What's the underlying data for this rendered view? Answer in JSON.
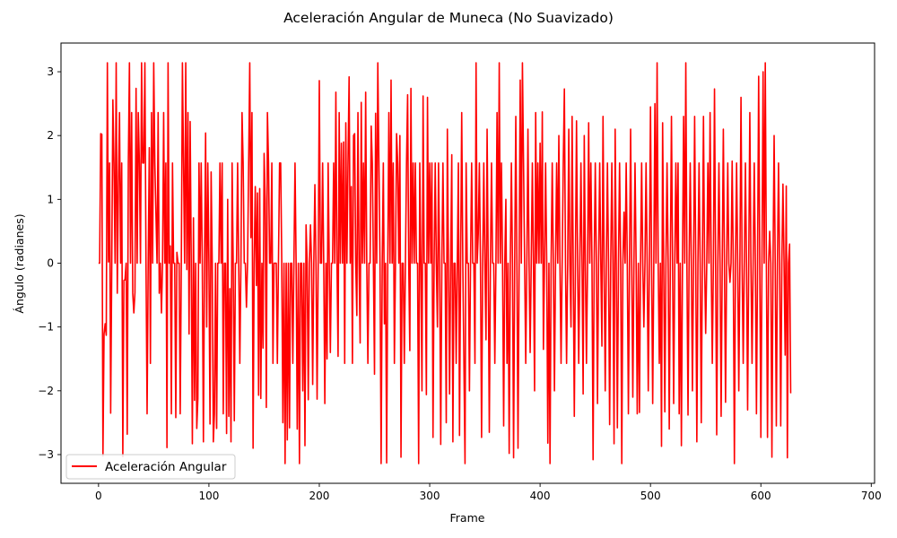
{
  "chart_data": {
    "type": "line",
    "title": "Aceleración Angular de Muneca (No Suavizado)",
    "xlabel": "Frame",
    "ylabel": "Ángulo (radianes)",
    "xlim": [
      -34,
      703
    ],
    "ylim": [
      -3.45,
      3.45
    ],
    "xticks": [
      0,
      100,
      200,
      300,
      400,
      500,
      600,
      700
    ],
    "yticks": [
      -3,
      -2,
      -1,
      0,
      1,
      2,
      3
    ],
    "grid": false,
    "legend_position": "lower-left",
    "series": [
      {
        "name": "Aceleración Angular",
        "color": "#ff0000",
        "x_start": 0,
        "x_step": 1,
        "values": [
          0.0,
          0.0,
          2.03,
          2.02,
          -3.02,
          -1.11,
          -0.95,
          -1.13,
          3.14,
          0.02,
          1.57,
          -2.35,
          0.0,
          2.56,
          1.57,
          0.0,
          3.14,
          -0.47,
          1.21,
          2.36,
          0.0,
          1.57,
          -3.03,
          -0.27,
          -0.26,
          0.0,
          -2.68,
          1.56,
          3.14,
          0.0,
          2.36,
          -0.47,
          -0.78,
          -0.46,
          2.74,
          0.0,
          2.36,
          1.57,
          0.0,
          3.14,
          1.57,
          1.57,
          3.14,
          0.0,
          -2.36,
          0.0,
          1.81,
          -1.57,
          2.36,
          0.0,
          3.14,
          1.57,
          0.78,
          0.0,
          2.36,
          -0.47,
          0.0,
          -0.78,
          0.0,
          2.36,
          0.0,
          1.57,
          -2.89,
          3.14,
          0.0,
          0.27,
          -2.36,
          1.57,
          0.0,
          0.0,
          -2.42,
          0.17,
          0.0,
          0.0,
          -2.36,
          0.0,
          3.14,
          1.57,
          0.0,
          3.14,
          -0.1,
          2.36,
          -1.11,
          2.22,
          0.0,
          -2.83,
          0.71,
          -2.15,
          0.0,
          -2.59,
          -2.12,
          1.57,
          0.0,
          1.57,
          0.0,
          -2.8,
          0.0,
          2.04,
          -1.0,
          1.57,
          0.0,
          -2.52,
          1.43,
          0.0,
          -2.8,
          -2.36,
          0.0,
          -2.59,
          0.0,
          0.0,
          1.57,
          0.0,
          1.57,
          -2.36,
          0.0,
          0.0,
          -2.67,
          1.0,
          -2.4,
          -0.4,
          -2.8,
          1.57,
          0.0,
          -2.47,
          0.0,
          0.0,
          1.57,
          0.0,
          -1.57,
          0.0,
          2.36,
          1.57,
          0.0,
          0.0,
          -0.69,
          0.0,
          1.57,
          3.14,
          0.4,
          2.36,
          -2.9,
          0.0,
          1.2,
          -0.35,
          1.1,
          -2.07,
          1.17,
          -2.12,
          0.0,
          -1.33,
          1.72,
          1.0,
          -2.26,
          2.36,
          1.57,
          0.0,
          0.0,
          1.57,
          -1.57,
          0.0,
          0.0,
          0.0,
          -1.57,
          0.0,
          1.57,
          1.57,
          0.0,
          -2.5,
          0.0,
          -3.14,
          0.0,
          -2.77,
          0.0,
          -2.58,
          0.0,
          0.0,
          -1.57,
          0.0,
          1.57,
          0.0,
          -2.6,
          0.0,
          -3.14,
          0.0,
          0.0,
          -2.0,
          0.0,
          -2.86,
          0.6,
          0.0,
          -2.14,
          0.0,
          0.6,
          0.0,
          -1.9,
          0.0,
          1.23,
          0.0,
          -2.13,
          0.0,
          2.86,
          0.0,
          0.0,
          1.57,
          0.0,
          -2.2,
          0.0,
          -1.5,
          1.57,
          0.0,
          -1.4,
          0.0,
          0.0,
          1.57,
          0.0,
          2.68,
          0.0,
          -1.46,
          2.36,
          0.0,
          1.88,
          0.0,
          1.9,
          -1.57,
          2.2,
          0.0,
          1.57,
          2.92,
          0.0,
          1.2,
          -1.57,
          2.0,
          2.03,
          0.0,
          -0.82,
          2.36,
          0.0,
          -1.25,
          2.52,
          0.0,
          1.57,
          0.0,
          2.68,
          0.0,
          -1.57,
          0.0,
          0.0,
          2.15,
          1.57,
          0.0,
          -1.74,
          2.35,
          0.0,
          3.14,
          1.57,
          0.0,
          -3.14,
          0.0,
          1.57,
          -0.95,
          0.0,
          -3.13,
          0.0,
          2.36,
          0.0,
          2.87,
          0.0,
          1.57,
          -1.57,
          0.0,
          2.03,
          1.57,
          0.0,
          2.0,
          -3.04,
          0.0,
          0.0,
          -1.57,
          0.0,
          1.57,
          2.64,
          0.0,
          -1.37,
          2.74,
          0.0,
          1.57,
          0.0,
          1.57,
          0.0,
          0.0,
          -3.14,
          1.57,
          0.0,
          -2.0,
          2.62,
          0.0,
          0.0,
          -2.06,
          2.6,
          0.0,
          1.57,
          0.0,
          1.57,
          -2.73,
          0.0,
          1.57,
          0.0,
          -1.0,
          1.57,
          0.0,
          -2.84,
          0.0,
          1.57,
          0.0,
          0.0,
          -2.5,
          2.1,
          0.0,
          -2.05,
          0.0,
          1.7,
          -2.8,
          0.0,
          0.0,
          -1.57,
          0.0,
          1.57,
          -2.7,
          0.0,
          2.36,
          0.0,
          -1.57,
          -3.14,
          1.57,
          0.0,
          0.0,
          -2.0,
          0.0,
          1.57,
          0.0,
          0.0,
          -1.57,
          3.14,
          0.0,
          0.46,
          1.57,
          0.0,
          -2.73,
          0.0,
          1.57,
          0.0,
          -1.2,
          2.1,
          0.0,
          -2.65,
          0.0,
          1.57,
          0.0,
          0.0,
          -1.57,
          0.0,
          2.36,
          0.0,
          3.14,
          0.0,
          1.57,
          0.0,
          -2.55,
          0.0,
          1.0,
          -1.57,
          0.0,
          -2.98,
          0.0,
          1.57,
          0.0,
          -3.05,
          0.0,
          2.3,
          0.0,
          -2.9,
          0.0,
          2.87,
          0.0,
          3.14,
          1.57,
          0.0,
          -1.57,
          0.0,
          2.1,
          0.0,
          -1.4,
          0.0,
          1.57,
          0.0,
          -2.0,
          2.36,
          0.0,
          1.57,
          0.0,
          1.88,
          0.0,
          2.37,
          -1.35,
          0.0,
          1.57,
          0.0,
          -2.82,
          0.0,
          -3.14,
          0.0,
          1.57,
          0.0,
          -2.0,
          0.0,
          1.57,
          0.0,
          2.0,
          0.0,
          -1.57,
          0.0,
          1.57,
          2.73,
          0.0,
          -1.57,
          0.0,
          2.1,
          0.0,
          -1.0,
          2.3,
          0.0,
          -2.4,
          0.0,
          2.23,
          0.0,
          -1.57,
          0.0,
          1.57,
          0.0,
          -2.05,
          2.0,
          0.0,
          -1.57,
          0.0,
          2.2,
          0.0,
          1.57,
          0.0,
          -3.08,
          0.0,
          1.57,
          0.0,
          -2.2,
          0.0,
          1.57,
          0.0,
          -1.3,
          2.3,
          0.0,
          -2.0,
          0.0,
          1.57,
          0.0,
          -2.53,
          0.0,
          1.57,
          0.0,
          -2.83,
          2.1,
          0.0,
          -2.58,
          0.0,
          1.57,
          0.0,
          -3.14,
          0.0,
          0.8,
          0.0,
          1.57,
          0.0,
          -2.36,
          0.0,
          2.1,
          0.0,
          -2.1,
          0.0,
          1.57,
          0.0,
          -2.36,
          0.0,
          -2.34,
          0.0,
          1.57,
          0.0,
          -1.0,
          0.0,
          1.57,
          0.0,
          -2.0,
          0.0,
          2.45,
          0.0,
          -2.2,
          0.0,
          2.5,
          0.0,
          3.14,
          0.0,
          -1.57,
          0.0,
          -2.87,
          2.2,
          0.0,
          -2.33,
          0.0,
          1.57,
          0.0,
          -2.6,
          0.0,
          2.3,
          0.0,
          -2.2,
          0.0,
          1.57,
          0.0,
          1.57,
          -2.36,
          0.0,
          -2.86,
          0.0,
          2.3,
          0.0,
          3.14,
          0.0,
          -2.38,
          0.0,
          1.57,
          0.0,
          -2.0,
          0.0,
          2.3,
          0.0,
          -2.8,
          0.0,
          1.57,
          0.0,
          -2.5,
          0.0,
          2.3,
          0.0,
          -1.1,
          0.0,
          1.57,
          0.0,
          2.36,
          0.0,
          -1.57,
          0.0,
          2.73,
          0.0,
          -2.69,
          0.0,
          1.57,
          0.0,
          -2.4,
          0.0,
          2.1,
          0.0,
          -2.18,
          0.0,
          1.57,
          0.0,
          -0.3,
          0.0,
          1.6,
          0.0,
          -3.14,
          0.0,
          1.57,
          0.0,
          -2.0,
          0.0,
          2.6,
          0.0,
          -1.57,
          0.0,
          1.57,
          0.0,
          -2.3,
          0.0,
          2.36,
          0.0,
          -1.57,
          0.0,
          1.57,
          0.0,
          -2.36,
          0.0,
          2.93,
          0.0,
          -2.73,
          0.0,
          3.0,
          0.0,
          3.14,
          0.0,
          -2.73,
          0.0,
          0.5,
          0.0,
          -3.04,
          0.0,
          2.0,
          0.0,
          -2.55,
          0.0,
          1.57,
          0.0,
          -2.55,
          0.0,
          1.24,
          0.0,
          -1.44,
          1.21,
          -3.05,
          0.0,
          0.3,
          -2.04
        ]
      }
    ]
  }
}
